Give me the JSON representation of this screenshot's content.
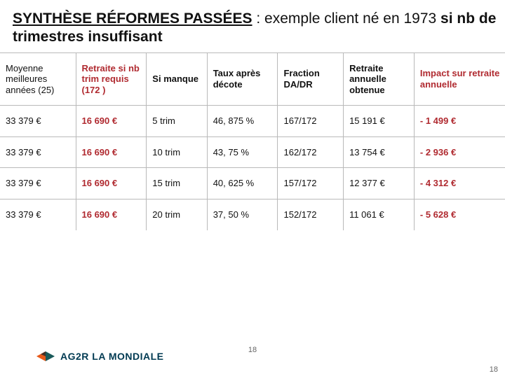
{
  "title": {
    "part1": "SYNTHÈSE RÉFORMES PASSÉES",
    "part2": " : exemple client né en 1973 ",
    "part3": "si nb de trimestres insuffisant"
  },
  "table": {
    "columns": [
      "Moyenne meilleures années (25)",
      "Retraite si nb trim requis (172 )",
      "Si manque",
      "Taux après décote",
      "Fraction DA/DR",
      "Retraite annuelle obtenue",
      "Impact sur retraite annuelle"
    ],
    "column_widths_pct": [
      15,
      14,
      12,
      14,
      13,
      14,
      18
    ],
    "header_accent_cols": [
      1,
      6
    ],
    "rows": [
      {
        "cells": [
          "33 379 €",
          "16 690 €",
          "5 trim",
          "46, 875 %",
          "167/172",
          "15 191 €",
          "- 1 499 €"
        ],
        "accent_cols": [
          1,
          6
        ]
      },
      {
        "cells": [
          "33 379 €",
          "16 690 €",
          "10 trim",
          "43, 75 %",
          "162/172",
          "13 754 €",
          "- 2 936 €"
        ],
        "accent_cols": [
          1,
          6
        ]
      },
      {
        "cells": [
          "33 379 €",
          "16 690 €",
          "15 trim",
          "40, 625 %",
          "157/172",
          "12 377 €",
          "- 4 312 €"
        ],
        "accent_cols": [
          1,
          6
        ]
      },
      {
        "cells": [
          "33 379 €",
          "16 690 €",
          "20 trim",
          "37, 50 %",
          "152/172",
          "11 061 €",
          "- 5 628 €"
        ],
        "accent_cols": [
          1,
          6
        ]
      }
    ],
    "accent_color": "#b02a30",
    "border_color": "#b9b9b9",
    "header_fontsize": 13,
    "cell_fontsize": 13
  },
  "footer": {
    "logo_text": "AG2R LA MONDIALE",
    "logo_colors": {
      "orange": "#e85a1a",
      "teal": "#1a5a5a",
      "dark": "#2a2a2a"
    },
    "page_center": "18",
    "page_right": "18"
  }
}
